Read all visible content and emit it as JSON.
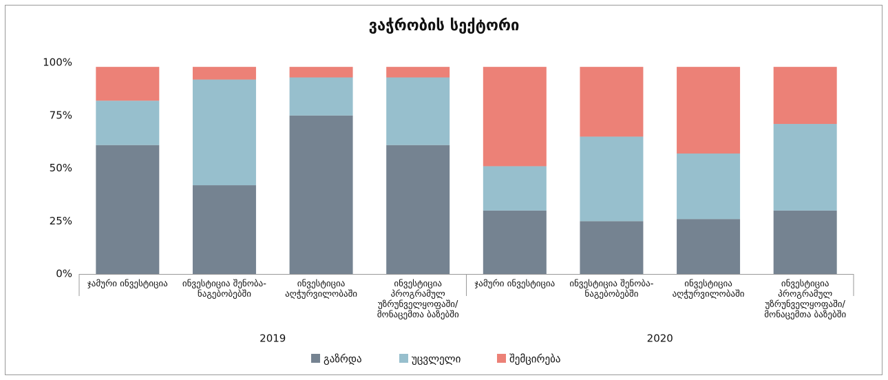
{
  "chart_data": {
    "type": "stacked_bar",
    "title": "ვაჭრობის სექტორი",
    "categories": [
      "ჯამური ინვესტიცია",
      "ინვესტიცია შენობა-ნაგებობებში",
      "ინვესტიცია აღჭურვილობაში",
      "ინვესტიცია პროგრამულ უზრუნველყოფაში/ მონაცემთა ბაზებში",
      "ჯამური ინვესტიცია",
      "ინვესტიცია შენობა-ნაგებობებში",
      "ინვესტიცია აღჭურვილობაში",
      "ინვესტიცია პროგრამულ უზრუნველყოფაში/ მონაცემთა ბაზებში"
    ],
    "groups": [
      "2019",
      "2020"
    ],
    "series": [
      {
        "name": "გაზრდა",
        "color": "#758391",
        "values": [
          61,
          42,
          75,
          61,
          30,
          25,
          26,
          30
        ]
      },
      {
        "name": "უცვლელი",
        "color": "#97bfcd",
        "values": [
          21,
          50,
          18,
          32,
          21,
          40,
          31,
          41
        ]
      },
      {
        "name": "შემცირება",
        "color": "#ec8177",
        "values": [
          16,
          6,
          5,
          5,
          47,
          33,
          41,
          27
        ]
      }
    ],
    "ylim": [
      0,
      100
    ],
    "yticks": [
      {
        "value": 0,
        "label": "0%"
      },
      {
        "value": 25,
        "label": "25%"
      },
      {
        "value": 50,
        "label": "50%"
      },
      {
        "value": 75,
        "label": "75%"
      },
      {
        "value": 100,
        "label": "100%"
      }
    ],
    "grid": false,
    "legend": "bottom"
  }
}
